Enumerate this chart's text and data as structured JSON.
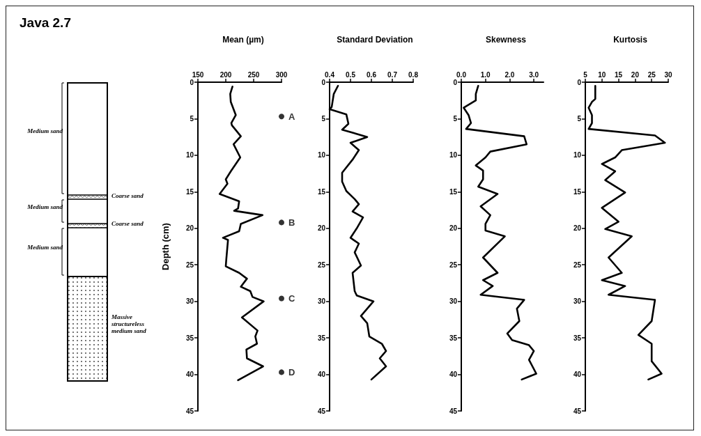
{
  "chart_data": [
    {
      "type": "other",
      "title": "Java 2.7",
      "annotations": [
        "Medium sand",
        "Coarse sand",
        "Medium sand",
        "Coarse sand",
        "Medium sand",
        "Massive structureless medium sand"
      ]
    },
    {
      "type": "line",
      "title": "Mean (µm)",
      "ylabel": "Depth (cm)",
      "xlim": [
        150,
        300
      ],
      "xticks": [
        150,
        200,
        250,
        300
      ],
      "ylim": [
        45,
        0
      ],
      "yticks": [
        0,
        5,
        10,
        15,
        20,
        25,
        30,
        35,
        40,
        45
      ],
      "series": [
        {
          "type": "line",
          "color": "#000000",
          "marker": "none",
          "x": [
            212,
            208,
            209,
            218,
            210,
            211,
            227,
            214,
            226,
            209,
            200,
            203,
            189,
            224,
            222,
            215,
            266,
            227,
            224,
            195,
            204,
            201,
            200,
            224,
            238,
            227,
            244,
            248,
            268,
            229,
            257,
            253,
            256,
            237,
            238,
            267,
            222
          ],
          "values": [
            0.6,
            1.6,
            2.7,
            4.5,
            5.6,
            5.9,
            7.4,
            8.5,
            10.3,
            12.2,
            13.3,
            13.9,
            15.3,
            16.3,
            17.3,
            17.6,
            18.2,
            19.4,
            20.4,
            21.3,
            21.6,
            24.2,
            25.2,
            26.1,
            26.9,
            28.0,
            28.6,
            29.4,
            30.0,
            32.2,
            34.0,
            34.8,
            35.8,
            36.6,
            37.8,
            38.9,
            40.8
          ]
        },
        {
          "type": "scatter",
          "color": "#000000",
          "marker": "circle",
          "x": [
            300,
            300,
            300,
            300
          ],
          "values": [
            4.7,
            19.2,
            29.6,
            39.7
          ],
          "value_labels": [
            "A",
            "B",
            "C",
            "D"
          ]
        }
      ]
    },
    {
      "type": "line",
      "title": "Standard Deviation",
      "xlim": [
        0.4,
        0.8
      ],
      "xticks": [
        0.4,
        0.5,
        0.6,
        0.7,
        0.8
      ],
      "ylim": [
        45,
        0
      ],
      "yticks": [
        0,
        5,
        10,
        15,
        20,
        25,
        30,
        35,
        40,
        45
      ],
      "series": [
        {
          "type": "line",
          "color": "#000000",
          "marker": "none",
          "x": [
            0.44,
            0.42,
            0.41,
            0.4,
            0.48,
            0.49,
            0.46,
            0.58,
            0.5,
            0.54,
            0.51,
            0.46,
            0.46,
            0.48,
            0.52,
            0.54,
            0.51,
            0.56,
            0.53,
            0.5,
            0.54,
            0.52,
            0.55,
            0.51,
            0.52,
            0.53,
            0.61,
            0.55,
            0.58,
            0.59,
            0.65,
            0.67,
            0.64,
            0.67,
            0.6
          ],
          "values": [
            0.5,
            1.6,
            3.4,
            3.7,
            4.4,
            5.7,
            6.5,
            7.5,
            8.3,
            9.3,
            10.6,
            12.4,
            13.6,
            14.9,
            16.0,
            16.7,
            17.7,
            18.5,
            20.0,
            21.3,
            22.1,
            23.3,
            25.1,
            26.1,
            28.6,
            29.2,
            30.0,
            32.0,
            33.0,
            34.8,
            35.8,
            36.8,
            37.8,
            38.9,
            40.7
          ]
        }
      ]
    },
    {
      "type": "line",
      "title": "Skewness",
      "xlim": [
        0,
        3.4
      ],
      "xticks": [
        {
          "value": 0,
          "label": "0.0"
        },
        {
          "value": 1,
          "label": "1.0"
        },
        {
          "value": 2,
          "label": "2.0"
        },
        {
          "value": 3,
          "label": "3.0"
        }
      ],
      "ylim": [
        45,
        0
      ],
      "yticks": [
        0,
        5,
        10,
        15,
        20,
        25,
        30,
        35,
        40,
        45
      ],
      "series": [
        {
          "type": "line",
          "color": "#000000",
          "marker": "none",
          "x": [
            0.7,
            0.6,
            0.6,
            0.1,
            0.3,
            0.4,
            0.2,
            2.6,
            2.7,
            1.2,
            1.0,
            0.6,
            0.9,
            0.9,
            0.7,
            1.5,
            0.8,
            1.2,
            1.0,
            1.0,
            1.8,
            0.9,
            1.5,
            0.9,
            1.3,
            0.8,
            2.6,
            2.3,
            2.4,
            1.9,
            2.1,
            2.8,
            3.0,
            2.8,
            3.1,
            2.5
          ],
          "values": [
            0.5,
            1.6,
            2.5,
            3.5,
            4.5,
            5.6,
            6.4,
            7.4,
            8.5,
            9.5,
            10.3,
            11.4,
            12.1,
            13.3,
            14.3,
            15.3,
            17.0,
            18.2,
            19.4,
            20.3,
            21.1,
            24.0,
            26.1,
            27.1,
            27.9,
            29.1,
            29.8,
            31.0,
            32.7,
            34.4,
            35.3,
            36.0,
            36.8,
            38.0,
            39.9,
            40.7
          ]
        }
      ]
    },
    {
      "type": "line",
      "title": "Kurtosis",
      "xlim": [
        5,
        30
      ],
      "xticks": [
        5,
        10,
        15,
        20,
        25,
        30
      ],
      "ylim": [
        45,
        0
      ],
      "yticks": [
        0,
        5,
        10,
        15,
        20,
        25,
        30,
        35,
        40,
        45
      ],
      "series": [
        {
          "type": "line",
          "color": "#000000",
          "marker": "none",
          "x": [
            8,
            8,
            7,
            6,
            7,
            7,
            6,
            26,
            29,
            16,
            14,
            10,
            14,
            11,
            17,
            10,
            15,
            11,
            19,
            12,
            16,
            10,
            17,
            12,
            26,
            25,
            21,
            25,
            25,
            28,
            24
          ],
          "values": [
            0.5,
            2.3,
            2.7,
            3.5,
            4.5,
            5.6,
            6.4,
            7.3,
            8.3,
            9.3,
            10.3,
            11.2,
            12.2,
            13.4,
            15.1,
            17.2,
            19.1,
            20.1,
            21.1,
            24.0,
            26.1,
            27.1,
            27.9,
            29.1,
            29.8,
            32.7,
            34.6,
            35.8,
            38.2,
            39.9,
            40.7
          ]
        }
      ]
    }
  ]
}
